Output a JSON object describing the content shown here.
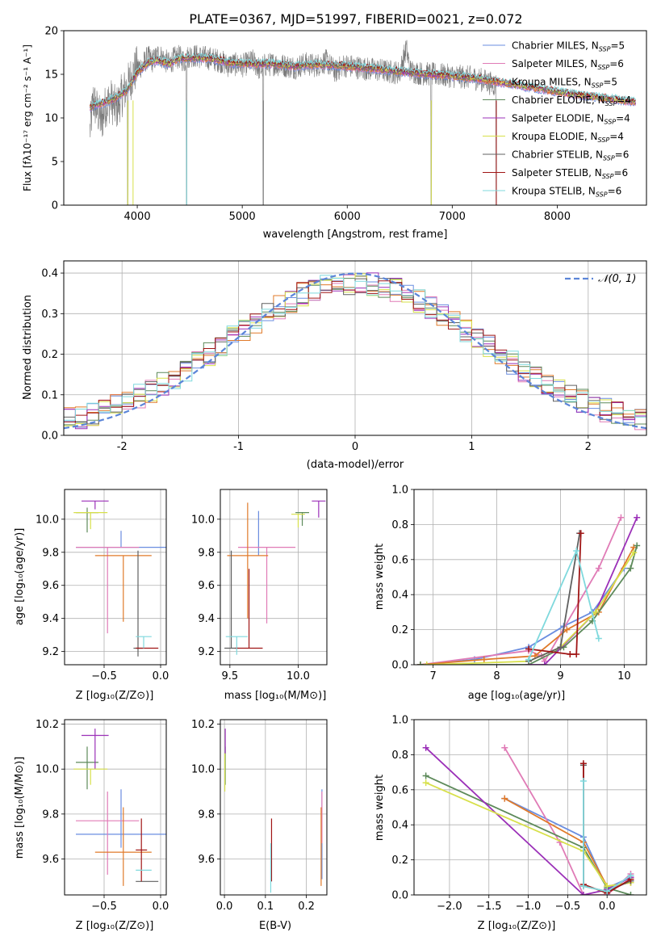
{
  "figure": {
    "title": "PLATE=0367, MJD=51997, FIBERID=0021, z=0.072"
  },
  "series_colors": [
    "#6a8de0",
    "#e07bb6",
    "#e07a2a",
    "#5d8a5a",
    "#9b30b8",
    "#d7e04a",
    "#606060",
    "#a01515",
    "#7fd9dd"
  ],
  "chart_data": [
    {
      "id": "spectrum",
      "type": "line",
      "title": "PLATE=0367, MJD=51997, FIBERID=0021, z=0.072",
      "xlabel": "wavelength [Angstrom, rest frame]",
      "ylabel": "Flux [fλ10⁻¹⁷ erg cm⁻² s⁻¹ A⁻¹]",
      "xlim": [
        3300,
        8850
      ],
      "ylim": [
        0,
        20
      ],
      "xticks": [
        4000,
        5000,
        6000,
        7000,
        8000
      ],
      "yticks": [
        0,
        5,
        10,
        15,
        20
      ],
      "legend_position": "top-right",
      "legend": [
        "Chabrier MILES, N_SSP=5",
        "Salpeter MILES, N_SSP=6",
        "Kroupa MILES, N_SSP=5",
        "Chabrier ELODIE, N_SSP=4",
        "Salpeter ELODIE, N_SSP=4",
        "Kroupa ELODIE, N_SSP=4",
        "Chabrier STELIB, N_SSP=6",
        "Salpeter STELIB, N_SSP=6",
        "Kroupa STELIB, N_SSP=6"
      ],
      "data_trace": {
        "x": [
          3550,
          3580,
          3620,
          3660,
          3700,
          3750,
          3800,
          3850,
          3900,
          3950,
          4000,
          4050,
          4100,
          4150,
          4200,
          4250,
          4300,
          4350,
          4400,
          4450,
          4500,
          4600,
          4700,
          4800,
          4860,
          4900,
          5000,
          5100,
          5175,
          5200,
          5300,
          5400,
          5500,
          5600,
          5700,
          5800,
          5890,
          5950,
          6000,
          6100,
          6200,
          6300,
          6400,
          6500,
          6563,
          6600,
          6700,
          6800,
          6900,
          7000,
          7100,
          7200,
          7300,
          7400
        ],
        "y": [
          8.5,
          12.0,
          10.8,
          9.5,
          11.5,
          12.0,
          11.0,
          12.5,
          13.5,
          14.8,
          15.8,
          16.0,
          17.0,
          16.5,
          17.3,
          16.8,
          16.2,
          16.8,
          17.0,
          16.5,
          17.2,
          17.0,
          16.8,
          16.5,
          16.0,
          16.2,
          16.0,
          16.5,
          15.5,
          16.0,
          16.2,
          16.0,
          15.8,
          16.2,
          16.0,
          16.5,
          15.3,
          16.0,
          16.0,
          15.8,
          15.6,
          15.5,
          15.3,
          15.2,
          18.0,
          15.4,
          15.1,
          15.0,
          14.9,
          14.8,
          14.7,
          14.6,
          14.3,
          13.8
        ]
      },
      "model_trace": {
        "x": [
          3550,
          3600,
          3700,
          3800,
          3900,
          4000,
          4100,
          4200,
          4300,
          4400,
          4500,
          4700,
          4900,
          5100,
          5300,
          5500,
          5700,
          5900,
          6100,
          6300,
          6500,
          6700,
          6900,
          7100,
          7300,
          7500,
          7700,
          7900,
          8100,
          8300,
          8500,
          8750
        ],
        "y": [
          11.2,
          11.5,
          11.8,
          12.3,
          13.2,
          15.2,
          16.3,
          16.6,
          16.2,
          16.8,
          16.9,
          16.8,
          16.3,
          16.2,
          16.2,
          15.9,
          16.1,
          16.0,
          15.8,
          15.6,
          15.3,
          15.1,
          14.9,
          14.7,
          14.4,
          14.0,
          13.6,
          13.2,
          12.8,
          12.5,
          12.2,
          11.8
        ]
      },
      "absorption_spikes": [
        {
          "x": 3910,
          "y": 0.0
        },
        {
          "x": 4470,
          "y": 0.0
        },
        {
          "x": 5200,
          "y": 0.0
        },
        {
          "x": 6800,
          "y": 0.0
        },
        {
          "x": 7420,
          "y": 0.0
        }
      ]
    },
    {
      "id": "residual-histogram",
      "type": "line",
      "xlabel": "(data-model)/error",
      "ylabel": "Normed distribution",
      "xlim": [
        -2.5,
        2.5
      ],
      "ylim": [
        0,
        0.43
      ],
      "xticks": [
        -2,
        -1,
        0,
        1,
        2
      ],
      "yticks": [
        0.0,
        0.1,
        0.2,
        0.3,
        0.4
      ],
      "legend_position": "top-right",
      "legend": [
        "𝒩(0, 1)"
      ],
      "bin_width": 0.1,
      "normal_curve": {
        "mean": 0,
        "sigma": 1
      }
    },
    {
      "id": "age-vs-Z",
      "type": "scatter",
      "xlabel": "Z [log₁₀(Z/Z⊙)]",
      "ylabel": "age  [log₁₀(age/yr)]",
      "xlim": [
        -0.85,
        0.05
      ],
      "ylim": [
        9.12,
        10.18
      ],
      "xticks": [
        -0.5,
        0.0
      ],
      "xticklabels": [
        "−0.5",
        "0.0"
      ],
      "yticks": [
        9.2,
        9.4,
        9.6,
        9.8,
        10.0
      ],
      "points": [
        {
          "x": -0.35,
          "y": 9.83,
          "xerr": 0.4,
          "yerr_lo": 0.0,
          "yerr_hi": 0.1
        },
        {
          "x": -0.47,
          "y": 9.83,
          "xerr": 0.28,
          "yerr_lo": 0.52,
          "yerr_hi": 0.0
        },
        {
          "x": -0.33,
          "y": 9.78,
          "xerr": 0.25,
          "yerr_lo": 0.4,
          "yerr_hi": 0.0
        },
        {
          "x": -0.65,
          "y": 10.04,
          "xerr": 0.1,
          "yerr_lo": 0.12,
          "yerr_hi": 0.03
        },
        {
          "x": -0.58,
          "y": 10.11,
          "xerr": 0.12,
          "yerr_lo": 0.05,
          "yerr_hi": 0.0
        },
        {
          "x": -0.62,
          "y": 10.04,
          "xerr": 0.15,
          "yerr_lo": 0.1,
          "yerr_hi": 0.0
        },
        {
          "x": -0.2,
          "y": 9.22,
          "xerr": 0.04,
          "yerr_lo": 0.05,
          "yerr_hi": 0.59
        },
        {
          "x": -0.12,
          "y": 9.22,
          "xerr": 0.1,
          "yerr_lo": 0.0,
          "yerr_hi": 0.0
        },
        {
          "x": -0.15,
          "y": 9.29,
          "xerr": 0.07,
          "yerr_lo": 0.07,
          "yerr_hi": 0.0
        }
      ]
    },
    {
      "id": "age-vs-mass",
      "type": "scatter",
      "xlabel": "mass [log₁₀(M/M⊙)]",
      "ylabel": "",
      "xlim": [
        9.43,
        10.21
      ],
      "ylim": [
        9.12,
        10.18
      ],
      "xticks": [
        9.5,
        10.0
      ],
      "xticklabels": [
        "9.5",
        "10.0"
      ],
      "yticks": [
        9.2,
        9.4,
        9.6,
        9.8,
        10.0
      ],
      "points": [
        {
          "x": 9.71,
          "y": 9.83,
          "xerr": 0.0,
          "yerr_lo": 0.05,
          "yerr_hi": 0.22
        },
        {
          "x": 9.77,
          "y": 9.83,
          "xerr": 0.21,
          "yerr_lo": 0.46,
          "yerr_hi": 0.0
        },
        {
          "x": 9.63,
          "y": 9.78,
          "xerr": 0.15,
          "yerr_lo": 0.38,
          "yerr_hi": 0.32
        },
        {
          "x": 10.03,
          "y": 10.04,
          "xerr": 0.05,
          "yerr_lo": 0.08,
          "yerr_hi": 0.0
        },
        {
          "x": 10.15,
          "y": 10.11,
          "xerr": 0.05,
          "yerr_lo": 0.1,
          "yerr_hi": 0.0
        },
        {
          "x": 10.0,
          "y": 10.03,
          "xerr": 0.05,
          "yerr_lo": 0.08,
          "yerr_hi": 0.0
        },
        {
          "x": 9.51,
          "y": 9.22,
          "xerr": 0.05,
          "yerr_lo": 0.0,
          "yerr_hi": 0.59
        },
        {
          "x": 9.64,
          "y": 9.22,
          "xerr": 0.1,
          "yerr_lo": 0.0,
          "yerr_hi": 0.48
        },
        {
          "x": 9.55,
          "y": 9.29,
          "xerr": 0.08,
          "yerr_lo": 0.11,
          "yerr_hi": 0.0
        }
      ]
    },
    {
      "id": "mass-weight-vs-age",
      "type": "line",
      "xlabel": "age  [log₁₀(age/yr)]",
      "ylabel": "mass weight",
      "xlim": [
        6.7,
        10.35
      ],
      "ylim": [
        0.0,
        1.0
      ],
      "xticks": [
        7,
        8,
        9,
        10
      ],
      "yticks": [
        0.0,
        0.2,
        0.4,
        0.6,
        0.8,
        1.0
      ],
      "series": [
        {
          "x": [
            6.8,
            7.65,
            8.5,
            9.05,
            9.5,
            10.0
          ],
          "y": [
            0.0,
            0.03,
            0.1,
            0.22,
            0.3,
            0.55
          ]
        },
        {
          "x": [
            6.8,
            8.5,
            8.7,
            8.75,
            9.6,
            9.95
          ],
          "y": [
            0.0,
            0.08,
            0.05,
            0.02,
            0.55,
            0.84
          ]
        },
        {
          "x": [
            6.8,
            7.8,
            8.6,
            9.1,
            9.6,
            10.15
          ],
          "y": [
            0.0,
            0.03,
            0.05,
            0.2,
            0.3,
            0.67
          ]
        },
        {
          "x": [
            6.8,
            8.5,
            9.05,
            9.5,
            10.1,
            10.2
          ],
          "y": [
            0.0,
            0.0,
            0.1,
            0.25,
            0.55,
            0.68
          ]
        },
        {
          "x": [
            8.5,
            8.75,
            9.55,
            10.2
          ],
          "y": [
            0.0,
            0.0,
            0.3,
            0.84
          ]
        },
        {
          "x": [
            6.9,
            8.5,
            9.0,
            9.55,
            10.15
          ],
          "y": [
            0.0,
            0.02,
            0.1,
            0.3,
            0.64
          ]
        },
        {
          "x": [
            8.5,
            9.0,
            9.3
          ],
          "y": [
            0.02,
            0.1,
            0.75
          ]
        },
        {
          "x": [
            8.5,
            9.15,
            9.25,
            9.32
          ],
          "y": [
            0.09,
            0.06,
            0.06,
            0.75
          ]
        },
        {
          "x": [
            8.5,
            9.25,
            9.6
          ],
          "y": [
            0.03,
            0.65,
            0.15
          ]
        }
      ]
    },
    {
      "id": "mass-vs-Z",
      "type": "scatter",
      "xlabel": "Z [log₁₀(Z/Z⊙)]",
      "ylabel": "mass [log₁₀(M/M⊙)]",
      "xlim": [
        -0.85,
        0.05
      ],
      "ylim": [
        9.44,
        10.22
      ],
      "xticks": [
        -0.5,
        0.0
      ],
      "xticklabels": [
        "−0.5",
        "0.0"
      ],
      "yticks": [
        9.6,
        9.8,
        10.0,
        10.2
      ],
      "points": [
        {
          "x": -0.35,
          "y": 9.71,
          "xerr": 0.4,
          "yerr_lo": 0.06,
          "yerr_hi": 0.2
        },
        {
          "x": -0.47,
          "y": 9.77,
          "xerr": 0.28,
          "yerr_lo": 0.24,
          "yerr_hi": 0.13
        },
        {
          "x": -0.33,
          "y": 9.63,
          "xerr": 0.25,
          "yerr_lo": 0.15,
          "yerr_hi": 0.2
        },
        {
          "x": -0.65,
          "y": 10.03,
          "xerr": 0.1,
          "yerr_lo": 0.12,
          "yerr_hi": 0.07
        },
        {
          "x": -0.58,
          "y": 10.15,
          "xerr": 0.12,
          "yerr_lo": 0.15,
          "yerr_hi": 0.03
        },
        {
          "x": -0.62,
          "y": 10.0,
          "xerr": 0.15,
          "yerr_lo": 0.07,
          "yerr_hi": 0.0
        },
        {
          "x": -0.12,
          "y": 9.5,
          "xerr": 0.1,
          "yerr_lo": 0.0,
          "yerr_hi": 0.0
        },
        {
          "x": -0.17,
          "y": 9.64,
          "xerr": 0.05,
          "yerr_lo": 0.14,
          "yerr_hi": 0.14
        },
        {
          "x": -0.15,
          "y": 9.55,
          "xerr": 0.07,
          "yerr_lo": 0.0,
          "yerr_hi": 0.0
        }
      ]
    },
    {
      "id": "mass-vs-EBV",
      "type": "scatter",
      "xlabel": "E(B-V)",
      "ylabel": "",
      "xlim": [
        -0.01,
        0.25
      ],
      "ylim": [
        9.44,
        10.22
      ],
      "xticks": [
        0.0,
        0.1,
        0.2
      ],
      "xticklabels": [
        "0.0",
        "0.1",
        "0.2"
      ],
      "yticks": [
        9.6,
        9.8,
        10.0,
        10.2
      ],
      "points": [
        {
          "x": 0.238,
          "y": 9.71,
          "xerr": 0.0,
          "yerr_lo": 0.2,
          "yerr_hi": 0.2
        },
        {
          "x": 0.238,
          "y": 9.77,
          "xerr": 0.0,
          "yerr_lo": 0.1,
          "yerr_hi": 0.13
        },
        {
          "x": 0.236,
          "y": 9.63,
          "xerr": 0.0,
          "yerr_lo": 0.15,
          "yerr_hi": 0.2
        },
        {
          "x": 0.002,
          "y": 10.03,
          "xerr": 0.0,
          "yerr_lo": 0.1,
          "yerr_hi": 0.07
        },
        {
          "x": 0.002,
          "y": 10.15,
          "xerr": 0.0,
          "yerr_lo": 0.08,
          "yerr_hi": 0.03
        },
        {
          "x": 0.001,
          "y": 10.0,
          "xerr": 0.0,
          "yerr_lo": 0.1,
          "yerr_hi": 0.07
        },
        {
          "x": 0.115,
          "y": 9.5,
          "xerr": 0.0,
          "yerr_lo": 0.0,
          "yerr_hi": 0.0
        },
        {
          "x": 0.115,
          "y": 9.64,
          "xerr": 0.0,
          "yerr_lo": 0.14,
          "yerr_hi": 0.14
        },
        {
          "x": 0.113,
          "y": 9.55,
          "xerr": 0.0,
          "yerr_lo": 0.1,
          "yerr_hi": 0.12
        }
      ]
    },
    {
      "id": "mass-weight-vs-Z",
      "type": "line",
      "xlabel": "Z [log₁₀(Z/Z⊙)]",
      "ylabel": "mass weight",
      "xlim": [
        -2.45,
        0.5
      ],
      "ylim": [
        0.0,
        1.0
      ],
      "xticks": [
        -2.0,
        -1.5,
        -1.0,
        -0.5,
        0.0
      ],
      "xticklabels": [
        "−2.0",
        "−1.5",
        "−1.0",
        "−0.5",
        "0.0"
      ],
      "yticks": [
        0.0,
        0.2,
        0.4,
        0.6,
        0.8,
        1.0
      ],
      "series": [
        {
          "x": [
            -1.3,
            -0.3,
            0.0,
            0.3
          ],
          "y": [
            0.55,
            0.33,
            0.04,
            0.1
          ]
        },
        {
          "x": [
            -1.3,
            -0.6,
            -0.3,
            0.0,
            0.3
          ],
          "y": [
            0.84,
            0.3,
            0.0,
            0.0,
            0.12
          ]
        },
        {
          "x": [
            -1.3,
            -0.3,
            0.0,
            0.3
          ],
          "y": [
            0.55,
            0.3,
            0.05,
            0.07
          ]
        },
        {
          "x": [
            -2.3,
            -0.3,
            0.0,
            0.3
          ],
          "y": [
            0.68,
            0.27,
            0.04,
            0.0
          ]
        },
        {
          "x": [
            -2.3,
            -0.3,
            0.0,
            0.3
          ],
          "y": [
            0.84,
            0.0,
            0.03,
            0.1
          ]
        },
        {
          "x": [
            -2.3,
            -0.3,
            0.0,
            0.3
          ],
          "y": [
            0.64,
            0.25,
            0.05,
            0.07
          ]
        },
        {
          "x": [
            -0.3,
            -0.3,
            0.0,
            0.3
          ],
          "y": [
            0.74,
            0.05,
            0.02,
            0.08
          ]
        },
        {
          "x": [
            -0.3,
            -0.3,
            0.0,
            0.3
          ],
          "y": [
            0.75,
            0.06,
            0.01,
            0.09
          ]
        },
        {
          "x": [
            -0.3,
            -0.3,
            0.0,
            0.3
          ],
          "y": [
            0.65,
            0.05,
            0.02,
            0.11
          ]
        }
      ]
    }
  ]
}
